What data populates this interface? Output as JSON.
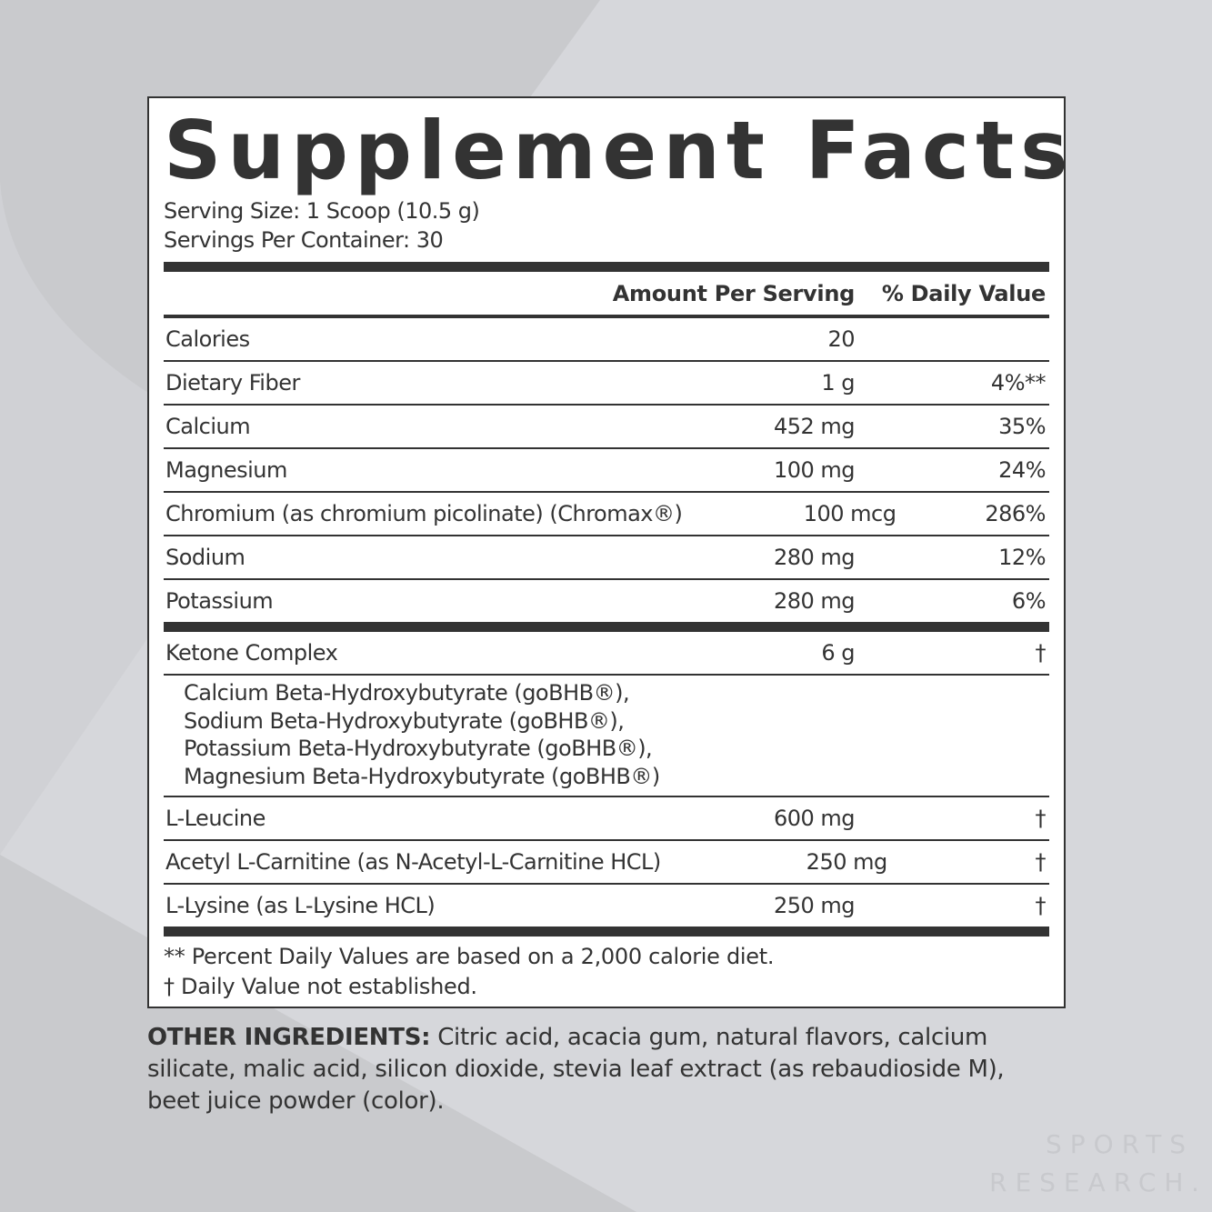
{
  "title": "Supplement Facts",
  "serving_size": "Serving Size: 1 Scoop (10.5 g)",
  "servings_per_container": "Servings Per Container: 30",
  "header": {
    "amount": "Amount Per Serving",
    "dv": "% Daily Value"
  },
  "rows": [
    {
      "name": "Calories",
      "amount": "20",
      "dv": ""
    },
    {
      "name": "Dietary Fiber",
      "amount": "1 g",
      "dv": "4%**"
    },
    {
      "name": "Calcium",
      "amount": "452 mg",
      "dv": "35%"
    },
    {
      "name": "Magnesium",
      "amount": "100 mg",
      "dv": "24%"
    },
    {
      "name": "Chromium (as chromium picolinate) (Chromax®)",
      "amount": "100 mcg",
      "dv": "286%"
    },
    {
      "name": "Sodium",
      "amount": "280 mg",
      "dv": "12%"
    },
    {
      "name": "Potassium",
      "amount": "280 mg",
      "dv": "6%"
    }
  ],
  "ketone": {
    "name": "Ketone Complex",
    "amount": "6 g",
    "dv": "†",
    "components": [
      "Calcium Beta-Hydroxybutyrate (goBHB®),",
      "Sodium Beta-Hydroxybutyrate (goBHB®),",
      "Potassium Beta-Hydroxybutyrate (goBHB®),",
      "Magnesium Beta-Hydroxybutyrate (goBHB®)"
    ]
  },
  "rows2": [
    {
      "name": "L-Leucine",
      "amount": "600 mg",
      "dv": "†"
    },
    {
      "name": "Acetyl L-Carnitine (as N-Acetyl-L-Carnitine HCL)",
      "amount": "250 mg",
      "dv": "†"
    },
    {
      "name": "L-Lysine (as L-Lysine HCL)",
      "amount": "250 mg",
      "dv": "†"
    }
  ],
  "footnotes": [
    "** Percent Daily Values are based on a 2,000 calorie diet.",
    "† Daily Value not established."
  ],
  "other_ingredients": {
    "label": "OTHER INGREDIENTS:",
    "text": " Citric acid, acacia gum, natural flavors, calcium silicate, malic acid, silicon dioxide, stevia leaf extract (as rebaudioside M), beet juice powder (color)."
  },
  "brand": {
    "line1": "SPORTS",
    "line2": "RESEARCH."
  },
  "colors": {
    "background": "#d6d7db",
    "shape": "#c9cacd",
    "text": "#333333"
  }
}
